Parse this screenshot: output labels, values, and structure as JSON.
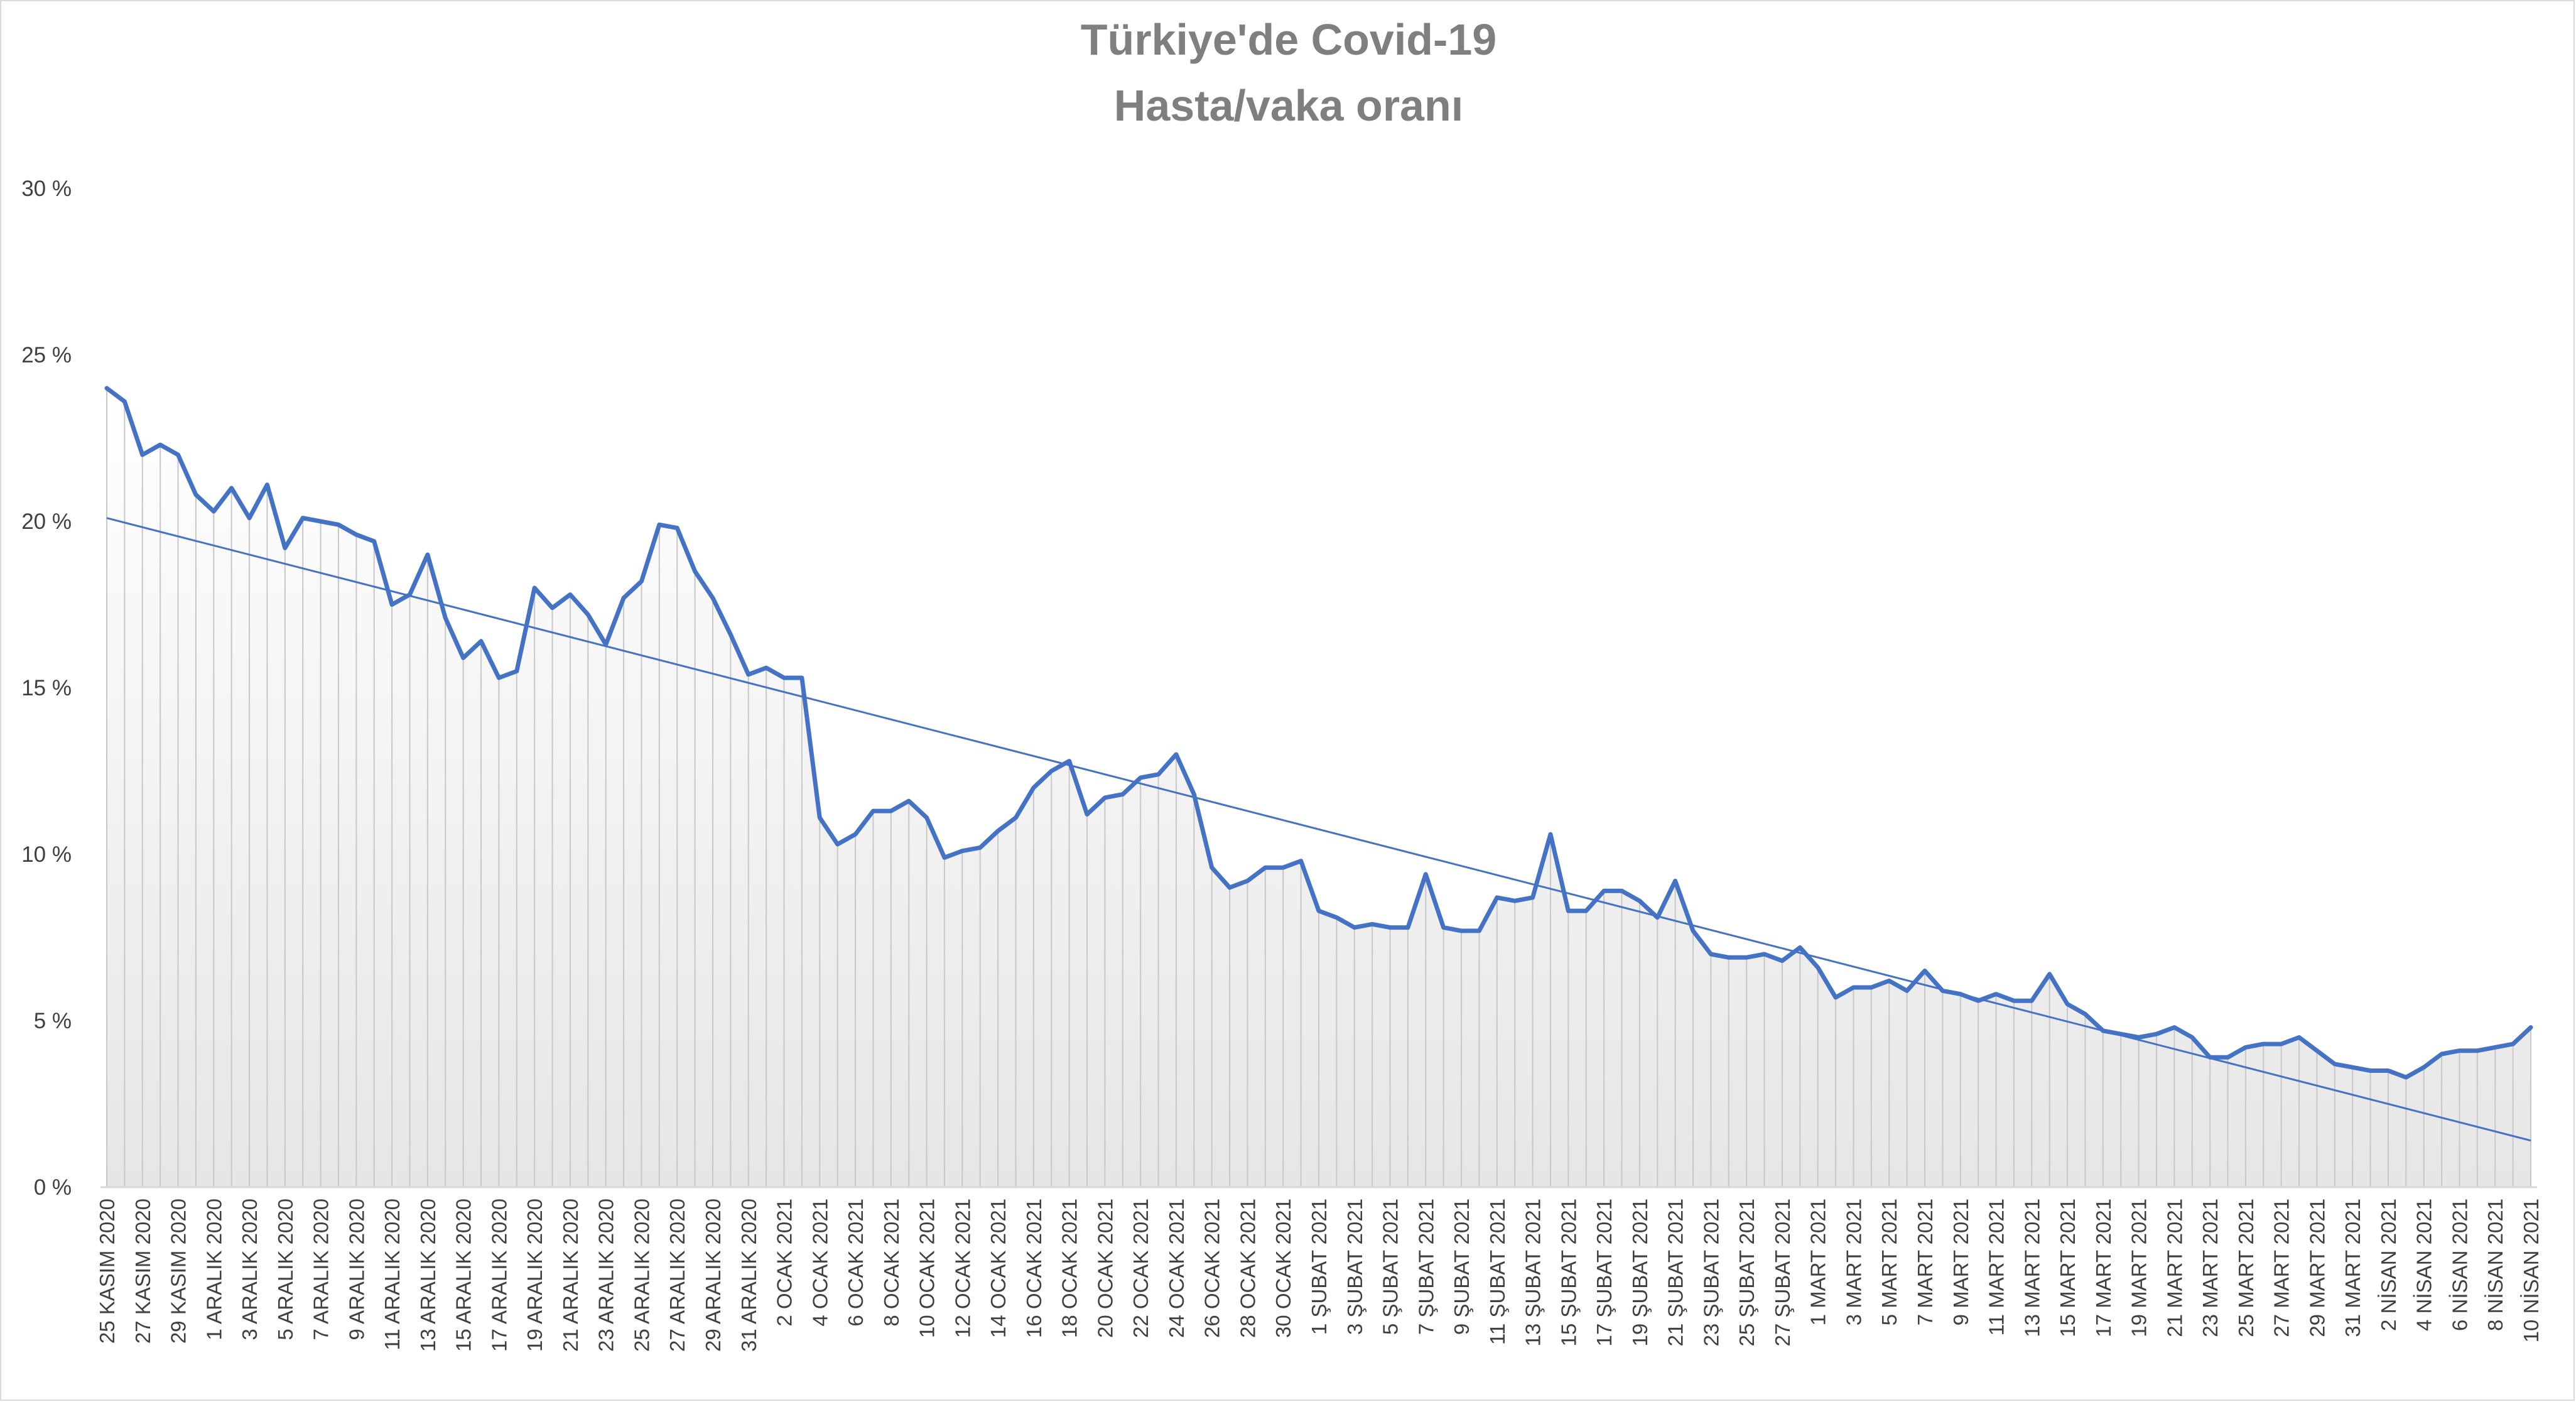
{
  "chart_data": {
    "type": "line",
    "title": "Türkiye'de Covid-19",
    "subtitle": "Hasta/vaka oranı",
    "xlabel": "",
    "ylabel": "",
    "ylim": [
      0,
      30
    ],
    "y_ticks": [
      "0 %",
      "5 %",
      "10 %",
      "15 %",
      "20 %",
      "25 %",
      "30 %"
    ],
    "grid": false,
    "drop_lines": true,
    "start_date": "2020-11-25",
    "x_tick_labels": [
      "25 KASIM 2020",
      "27 KASIM 2020",
      "29 KASIM 2020",
      "1 ARALIK 2020",
      "3 ARALIK 2020",
      "5 ARALIK 2020",
      "7 ARALIK 2020",
      "9 ARALIK 2020",
      "11 ARALIK 2020",
      "13 ARALIK 2020",
      "15 ARALIK 2020",
      "17 ARALIK 2020",
      "19 ARALIK 2020",
      "21 ARALIK 2020",
      "23 ARALIK 2020",
      "25 ARALIK 2020",
      "27 ARALIK 2020",
      "29 ARALIK 2020",
      "31 ARALIK 2020",
      "2 OCAK 2021",
      "4 OCAK 2021",
      "6 OCAK 2021",
      "8 OCAK 2021",
      "10 OCAK 2021",
      "12 OCAK 2021",
      "14 OCAK 2021",
      "16 OCAK 2021",
      "18 OCAK 2021",
      "20 OCAK 2021",
      "22 OCAK 2021",
      "24 OCAK 2021",
      "26 OCAK 2021",
      "28 OCAK 2021",
      "30 OCAK 2021",
      "1 ŞUBAT 2021",
      "3 ŞUBAT 2021",
      "5 ŞUBAT 2021",
      "7 ŞUBAT 2021",
      "9 ŞUBAT 2021",
      "11 ŞUBAT 2021",
      "13 ŞUBAT 2021",
      "15 ŞUBAT 2021",
      "17 ŞUBAT 2021",
      "19 ŞUBAT 2021",
      "21 ŞUBAT 2021",
      "23 ŞUBAT 2021",
      "25 ŞUBAT 2021",
      "27 ŞUBAT 2021",
      "1 MART 2021",
      "3 MART 2021",
      "5 MART 2021",
      "7 MART 2021",
      "9 MART 2021",
      "11 MART 2021",
      "13 MART 2021",
      "15 MART 2021",
      "17 MART 2021",
      "19 MART 2021",
      "21 MART 2021",
      "23 MART 2021",
      "25 MART 2021",
      "27 MART 2021",
      "29 MART 2021",
      "31 MART 2021",
      "2 NİSAN 2021",
      "4 NİSAN 2021",
      "6 NİSAN 2021",
      "8 NİSAN 2021",
      "10 NİSAN 2021"
    ],
    "series": [
      {
        "values": [
          24.0,
          23.6,
          22.0,
          22.3,
          22.0,
          20.8,
          20.3,
          21.0,
          20.1,
          21.1,
          19.2,
          20.1,
          20.0,
          19.9,
          19.6,
          19.4,
          17.5,
          17.8,
          19.0,
          17.1,
          15.9,
          16.4,
          15.3,
          15.5,
          18.0,
          17.4,
          17.8,
          17.2,
          16.3,
          17.7,
          18.2,
          19.9,
          19.8,
          18.5,
          17.7,
          16.6,
          15.4,
          15.6,
          15.3,
          15.3,
          11.1,
          10.3,
          10.6,
          11.3,
          11.3,
          11.6,
          11.1,
          9.9,
          10.1,
          10.2,
          10.7,
          11.1,
          12.0,
          12.5,
          12.8,
          11.2,
          11.7,
          11.8,
          12.3,
          12.4,
          13.0,
          11.8,
          9.6,
          9.0,
          9.2,
          9.6,
          9.6,
          9.8,
          8.3,
          8.1,
          7.8,
          7.9,
          7.8,
          7.8,
          9.4,
          7.8,
          7.7,
          7.7,
          8.7,
          8.6,
          8.7,
          10.6,
          8.3,
          8.3,
          8.9,
          8.9,
          8.6,
          8.1,
          9.2,
          7.7,
          7.0,
          6.9,
          6.9,
          7.0,
          6.8,
          7.2,
          6.6,
          5.7,
          6.0,
          6.0,
          6.2,
          5.9,
          6.5,
          5.9,
          5.8,
          5.6,
          5.8,
          5.6,
          5.6,
          6.4,
          5.5,
          5.2,
          4.7,
          4.6,
          4.5,
          4.6,
          4.8,
          4.5,
          3.9,
          3.9,
          4.2,
          4.3,
          4.3,
          4.5,
          4.1,
          3.7,
          3.6,
          3.5,
          3.5,
          3.3,
          3.6,
          4.0,
          4.1,
          4.1,
          4.2,
          4.3,
          4.8
        ]
      }
    ],
    "trendline": {
      "type": "linear",
      "start": 20.1,
      "end": 1.4
    },
    "colors": {
      "line": "#4472c4",
      "trendline": "#4472c4",
      "drop_lines": "#c8c8c8",
      "title": "#7f7f7f",
      "axis": "#d9d9d9",
      "tick_text": "#404040"
    }
  }
}
